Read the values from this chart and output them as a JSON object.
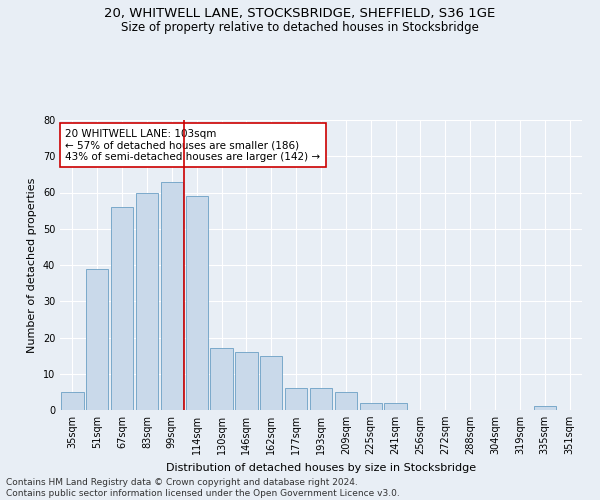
{
  "title1": "20, WHITWELL LANE, STOCKSBRIDGE, SHEFFIELD, S36 1GE",
  "title2": "Size of property relative to detached houses in Stocksbridge",
  "xlabel": "Distribution of detached houses by size in Stocksbridge",
  "ylabel": "Number of detached properties",
  "categories": [
    "35sqm",
    "51sqm",
    "67sqm",
    "83sqm",
    "99sqm",
    "114sqm",
    "130sqm",
    "146sqm",
    "162sqm",
    "177sqm",
    "193sqm",
    "209sqm",
    "225sqm",
    "241sqm",
    "256sqm",
    "272sqm",
    "288sqm",
    "304sqm",
    "319sqm",
    "335sqm",
    "351sqm"
  ],
  "values": [
    5,
    39,
    56,
    60,
    63,
    59,
    17,
    16,
    15,
    6,
    6,
    5,
    2,
    2,
    0,
    0,
    0,
    0,
    0,
    1,
    0
  ],
  "bar_color": "#c9d9ea",
  "bar_edgecolor": "#6b9fc5",
  "vline_x": 4.5,
  "vline_color": "#cc0000",
  "annotation_text": "20 WHITWELL LANE: 103sqm\n← 57% of detached houses are smaller (186)\n43% of semi-detached houses are larger (142) →",
  "annotation_box_facecolor": "#ffffff",
  "annotation_box_edgecolor": "#cc0000",
  "ylim": [
    0,
    80
  ],
  "yticks": [
    0,
    10,
    20,
    30,
    40,
    50,
    60,
    70,
    80
  ],
  "bg_color": "#e8eef5",
  "grid_color": "#ffffff",
  "footnote": "Contains HM Land Registry data © Crown copyright and database right 2024.\nContains public sector information licensed under the Open Government Licence v3.0.",
  "title1_fontsize": 9.5,
  "title2_fontsize": 8.5,
  "xlabel_fontsize": 8,
  "ylabel_fontsize": 8,
  "tick_fontsize": 7,
  "annotation_fontsize": 7.5,
  "footnote_fontsize": 6.5
}
